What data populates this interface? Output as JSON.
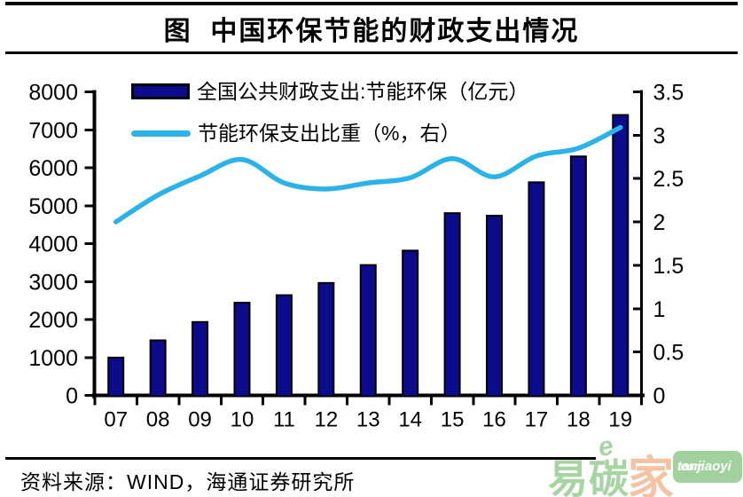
{
  "title": {
    "text": "图  中国环保节能的财政支出情况"
  },
  "legend": {
    "items": [
      {
        "label": "全国公共财政支出:节能环保（亿元）",
        "swatch": "bar",
        "color": "#0b0b8b"
      },
      {
        "label": "节能环保支出比重（%，右）",
        "swatch": "line",
        "color": "#2bb3e8"
      }
    ]
  },
  "chart_data": {
    "type": "bar+line",
    "title": "图 中国环保节能的财政支出情况",
    "categories": [
      "07",
      "08",
      "09",
      "10",
      "11",
      "12",
      "13",
      "14",
      "15",
      "16",
      "17",
      "18",
      "19"
    ],
    "series": [
      {
        "name": "全国公共财政支出:节能环保（亿元）",
        "type": "bar",
        "axis": "left",
        "color": "#0b0b8b",
        "values": [
          996,
          1451,
          1934,
          2442,
          2641,
          2963,
          3435,
          3816,
          4803,
          4735,
          5617,
          6298,
          7390
        ]
      },
      {
        "name": "节能环保支出比重（%，右）",
        "type": "line",
        "axis": "right",
        "color": "#2bb3e8",
        "values": [
          2.0,
          2.31,
          2.53,
          2.72,
          2.45,
          2.38,
          2.45,
          2.51,
          2.73,
          2.52,
          2.76,
          2.85,
          3.09
        ]
      }
    ],
    "left_axis": {
      "min": 0,
      "max": 8000,
      "step": 1000,
      "ticks": [
        "0",
        "1000",
        "2000",
        "3000",
        "4000",
        "5000",
        "6000",
        "7000",
        "8000"
      ]
    },
    "right_axis": {
      "min": 0,
      "max": 3.5,
      "step": 0.5,
      "ticks": [
        "0",
        "0.5",
        "1",
        "1.5",
        "2",
        "2.5",
        "3",
        "3.5"
      ]
    },
    "grid": false,
    "legend_position": "top-left",
    "axis_color": "#000000"
  },
  "source": {
    "text": "资料来源：WIND，海通证券研究所"
  },
  "watermark": {
    "accent": "e",
    "cjk_green": "易碳",
    "cjk_orange": "家",
    "badge_top": "tanjiaoyi",
    "badge_bottom": ".com",
    "green": "#9fd09b",
    "orange": "#f2bd9a",
    "badge_bg": "#97cd93"
  }
}
